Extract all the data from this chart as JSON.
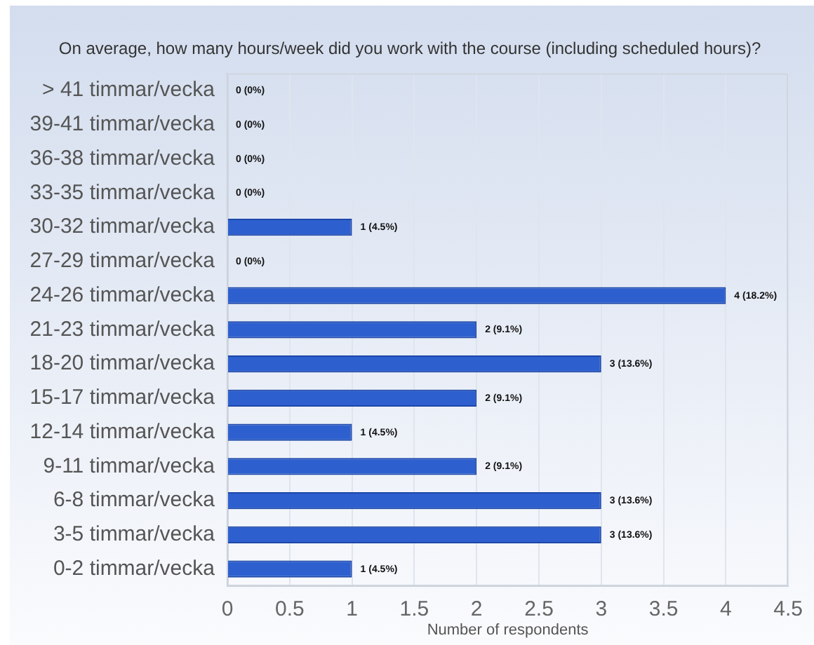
{
  "chart_data": {
    "type": "bar",
    "orientation": "horizontal",
    "title": "On average, how many hours/week did you work with the course (including scheduled hours)?",
    "xlabel": "Number of respondents",
    "categories": [
      "> 41 timmar/vecka",
      "39-41 timmar/vecka",
      "36-38 timmar/vecka",
      "33-35 timmar/vecka",
      "30-32 timmar/vecka",
      "27-29 timmar/vecka",
      "24-26 timmar/vecka",
      "21-23 timmar/vecka",
      "18-20 timmar/vecka",
      "15-17 timmar/vecka",
      "12-14 timmar/vecka",
      "9-11 timmar/vecka",
      "6-8 timmar/vecka",
      "3-5 timmar/vecka",
      "0-2 timmar/vecka"
    ],
    "values": [
      0,
      0,
      0,
      0,
      1,
      0,
      4,
      2,
      3,
      2,
      1,
      2,
      3,
      3,
      1
    ],
    "value_labels": [
      "0 (0%)",
      "0 (0%)",
      "0 (0%)",
      "0 (0%)",
      "1 (4.5%)",
      "0 (0%)",
      "4 (18.2%)",
      "2 (9.1%)",
      "3 (13.6%)",
      "2 (9.1%)",
      "1 (4.5%)",
      "2 (9.1%)",
      "3 (13.6%)",
      "3 (13.6%)",
      "1 (4.5%)"
    ],
    "color": "#2d5fcf",
    "xlim": [
      0,
      4.5
    ],
    "xticks": [
      0,
      0.5,
      1,
      1.5,
      2,
      2.5,
      3,
      3.5,
      4,
      4.5
    ],
    "grid": "x"
  }
}
